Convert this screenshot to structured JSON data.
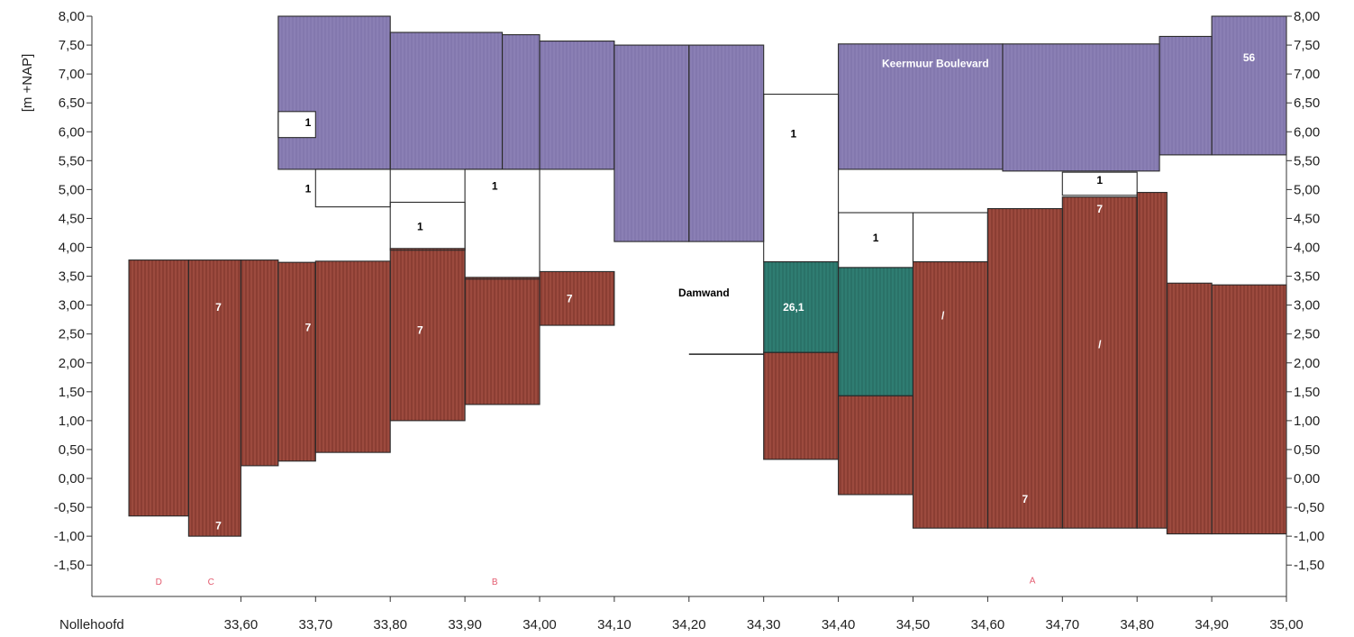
{
  "chart_data": {
    "type": "area",
    "title": "",
    "ylabel": "[m +NAP]",
    "xlim": [
      33.45,
      35.0
    ],
    "ylim": [
      -2.1,
      8.0
    ],
    "grid": false,
    "x_ticks": [
      "33,60",
      "33,70",
      "33,80",
      "33,90",
      "34,00",
      "34,10",
      "34,20",
      "34,30",
      "34,40",
      "34,50",
      "34,60",
      "34,70",
      "34,80",
      "34,90",
      "35,00"
    ],
    "x_tick_values": [
      33.6,
      33.7,
      33.8,
      33.9,
      34.0,
      34.1,
      34.2,
      34.3,
      34.4,
      34.5,
      34.6,
      34.7,
      34.8,
      34.9,
      35.0
    ],
    "x_start_label": "Nollehoofd",
    "y_ticks_left": [
      "8,00",
      "7,50",
      "7,00",
      "6,50",
      "6,00",
      "5,50",
      "5,00",
      "4,50",
      "4,00",
      "3,50",
      "3,00",
      "2,50",
      "2,00",
      "1,50",
      "1,00",
      "0,50",
      "0,00",
      "-0,50",
      "-1,00",
      "-1,50"
    ],
    "y_ticks_right": [
      "8,00",
      "7,50",
      "7,00",
      "6,50",
      "6,00",
      "5,50",
      "5,00",
      "4,50",
      "4,00",
      "3,50",
      "3,00",
      "2,50",
      "2,00",
      "1,50",
      "1,00",
      "0,50",
      "0,00",
      "-0,50",
      "-1,00",
      "-1,50"
    ],
    "y_tick_values": [
      8.0,
      7.5,
      7.0,
      6.5,
      6.0,
      5.5,
      5.0,
      4.5,
      4.0,
      3.5,
      3.0,
      2.5,
      2.0,
      1.5,
      1.0,
      0.5,
      0.0,
      -0.5,
      -1.0,
      -1.5
    ],
    "colors": {
      "layer_56": "#8a7fb4",
      "layer_7": "#9c4a3e",
      "layer_26_1": "#2f7d72",
      "layer_1": "#ffffff",
      "outline": "#2a2a2a"
    },
    "layers": [
      {
        "material": "56",
        "color_key": "layer_56",
        "blocks": [
          [
            33.65,
            33.8,
            5.35,
            8.0
          ],
          [
            33.8,
            33.95,
            5.35,
            7.72
          ],
          [
            33.95,
            34.0,
            5.35,
            7.68
          ],
          [
            34.0,
            34.1,
            5.35,
            7.57
          ],
          [
            34.1,
            34.2,
            4.1,
            7.5
          ],
          [
            34.2,
            34.3,
            4.1,
            7.5
          ],
          [
            34.4,
            34.62,
            5.35,
            7.52
          ],
          [
            34.62,
            34.83,
            5.32,
            7.52
          ],
          [
            34.83,
            34.9,
            5.6,
            7.65
          ],
          [
            34.9,
            35.0,
            5.6,
            8.0
          ]
        ]
      },
      {
        "material": "1",
        "color_key": "layer_1",
        "blocks": [
          [
            33.65,
            33.7,
            5.9,
            6.35
          ],
          [
            33.7,
            33.8,
            4.7,
            5.35
          ],
          [
            33.8,
            33.9,
            3.95,
            4.78
          ],
          [
            33.9,
            34.0,
            3.45,
            5.35
          ],
          [
            34.3,
            34.4,
            3.75,
            6.65
          ],
          [
            34.4,
            34.5,
            3.65,
            4.6
          ],
          [
            34.5,
            34.6,
            3.75,
            4.6
          ],
          [
            34.7,
            34.8,
            4.9,
            5.3
          ]
        ]
      },
      {
        "material": "7",
        "color_key": "layer_7",
        "blocks": [
          [
            33.45,
            33.53,
            -0.65,
            3.78
          ],
          [
            33.53,
            33.6,
            -1.0,
            3.78
          ],
          [
            33.6,
            33.65,
            0.22,
            3.78
          ],
          [
            33.65,
            33.7,
            0.3,
            3.74
          ],
          [
            33.7,
            33.8,
            0.45,
            3.76
          ],
          [
            33.8,
            33.9,
            1.0,
            3.98
          ],
          [
            33.9,
            34.0,
            1.28,
            3.48
          ],
          [
            34.0,
            34.1,
            2.65,
            3.58
          ],
          [
            34.3,
            34.4,
            0.33,
            2.18
          ],
          [
            34.4,
            34.5,
            -0.28,
            1.43
          ],
          [
            34.5,
            34.6,
            -0.86,
            3.75
          ],
          [
            34.6,
            34.7,
            -0.86,
            4.67
          ],
          [
            34.7,
            34.8,
            -0.86,
            4.87
          ],
          [
            34.8,
            34.84,
            -0.86,
            4.95
          ],
          [
            34.84,
            34.9,
            -0.96,
            3.38
          ],
          [
            34.9,
            35.0,
            -0.96,
            3.35
          ]
        ]
      },
      {
        "material": "26,1",
        "color_key": "layer_26_1",
        "blocks": [
          [
            34.3,
            34.4,
            2.18,
            3.75
          ],
          [
            34.4,
            34.5,
            1.43,
            3.65
          ]
        ]
      }
    ],
    "annotations": [
      {
        "text": "Keermuur Boulevard",
        "x": 34.53,
        "y": 7.12,
        "color": "#ffffff"
      },
      {
        "text": "56",
        "x": 34.95,
        "y": 7.22,
        "color": "#ffffff"
      },
      {
        "text": "Damwand",
        "x": 34.22,
        "y": 3.15,
        "color": "#000000"
      },
      {
        "text": "26,1",
        "x": 34.34,
        "y": 2.9,
        "color": "#ffffff"
      },
      {
        "text": "1",
        "x": 33.69,
        "y": 6.1,
        "color": "#000000"
      },
      {
        "text": "1",
        "x": 33.69,
        "y": 4.95,
        "color": "#000000"
      },
      {
        "text": "1",
        "x": 33.84,
        "y": 4.3,
        "color": "#000000"
      },
      {
        "text": "1",
        "x": 33.94,
        "y": 5.0,
        "color": "#000000"
      },
      {
        "text": "1",
        "x": 34.34,
        "y": 5.9,
        "color": "#000000"
      },
      {
        "text": "1",
        "x": 34.45,
        "y": 4.1,
        "color": "#000000"
      },
      {
        "text": "1",
        "x": 34.75,
        "y": 5.1,
        "color": "#000000"
      },
      {
        "text": "7",
        "x": 33.57,
        "y": 2.9,
        "color": "#ffffff"
      },
      {
        "text": "7",
        "x": 33.69,
        "y": 2.55,
        "color": "#ffffff"
      },
      {
        "text": "7",
        "x": 33.84,
        "y": 2.5,
        "color": "#ffffff"
      },
      {
        "text": "7",
        "x": 34.04,
        "y": 3.05,
        "color": "#ffffff"
      },
      {
        "text": "7",
        "x": 33.57,
        "y": -0.88,
        "color": "#ffffff"
      },
      {
        "text": "7",
        "x": 34.75,
        "y": 4.6,
        "color": "#ffffff"
      },
      {
        "text": "7",
        "x": 34.65,
        "y": -0.42,
        "color": "#ffffff"
      },
      {
        "text": "/",
        "x": 34.54,
        "y": 2.75,
        "color": "#ffffff"
      },
      {
        "text": "/",
        "x": 34.75,
        "y": 2.25,
        "color": "#ffffff"
      }
    ],
    "zone_labels": [
      {
        "text": "D",
        "x": 33.49,
        "y": -1.84
      },
      {
        "text": "C",
        "x": 33.56,
        "y": -1.84
      },
      {
        "text": "B",
        "x": 33.94,
        "y": -1.84
      },
      {
        "text": "A",
        "x": 34.66,
        "y": -1.82
      }
    ],
    "damwand_line": {
      "x": [
        34.2,
        34.3
      ],
      "y": 2.15
    }
  }
}
